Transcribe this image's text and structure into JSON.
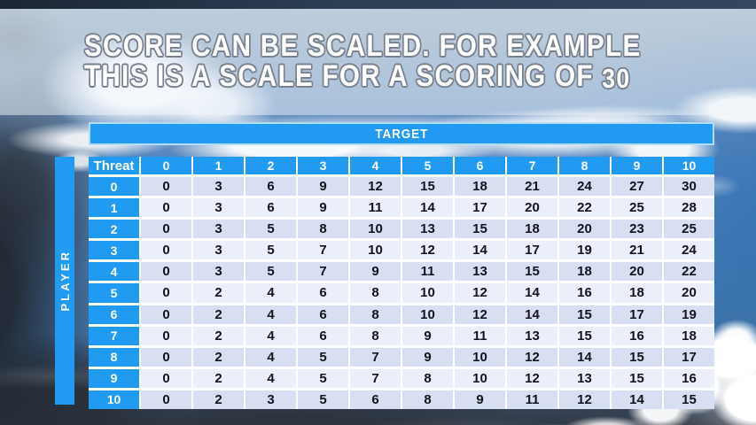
{
  "title": {
    "line1": "SCORE CAN BE SCALED. FOR EXAMPLE",
    "line2_prefix": "THIS IS A SCALE FOR A SCORING OF ",
    "line2_number": "30"
  },
  "table": {
    "target_label": "TARGET",
    "player_label": "PLAYER",
    "corner_label": "Threat",
    "col_headers": [
      "0",
      "1",
      "2",
      "3",
      "4",
      "5",
      "6",
      "7",
      "8",
      "9",
      "10"
    ],
    "row_headers": [
      "0",
      "1",
      "2",
      "3",
      "4",
      "5",
      "6",
      "7",
      "8",
      "9",
      "10"
    ],
    "values": [
      [
        0,
        3,
        6,
        9,
        12,
        15,
        18,
        21,
        24,
        27,
        30
      ],
      [
        0,
        3,
        6,
        9,
        11,
        14,
        17,
        20,
        22,
        25,
        28
      ],
      [
        0,
        3,
        5,
        8,
        10,
        13,
        15,
        18,
        20,
        23,
        25
      ],
      [
        0,
        3,
        5,
        7,
        10,
        12,
        14,
        17,
        19,
        21,
        24
      ],
      [
        0,
        3,
        5,
        7,
        9,
        11,
        13,
        15,
        18,
        20,
        22
      ],
      [
        0,
        2,
        4,
        6,
        8,
        10,
        12,
        14,
        16,
        18,
        20
      ],
      [
        0,
        2,
        4,
        6,
        8,
        10,
        12,
        14,
        15,
        17,
        19
      ],
      [
        0,
        2,
        4,
        6,
        8,
        9,
        11,
        13,
        15,
        16,
        18
      ],
      [
        0,
        2,
        4,
        5,
        7,
        9,
        10,
        12,
        14,
        15,
        17
      ],
      [
        0,
        2,
        4,
        5,
        7,
        8,
        10,
        12,
        13,
        15,
        16
      ],
      [
        0,
        2,
        3,
        5,
        6,
        8,
        9,
        11,
        12,
        14,
        15
      ]
    ]
  },
  "colors": {
    "accent_blue": "#209BF1",
    "band_dark": "#D8DFF2",
    "band_light": "#EBEFF9"
  }
}
